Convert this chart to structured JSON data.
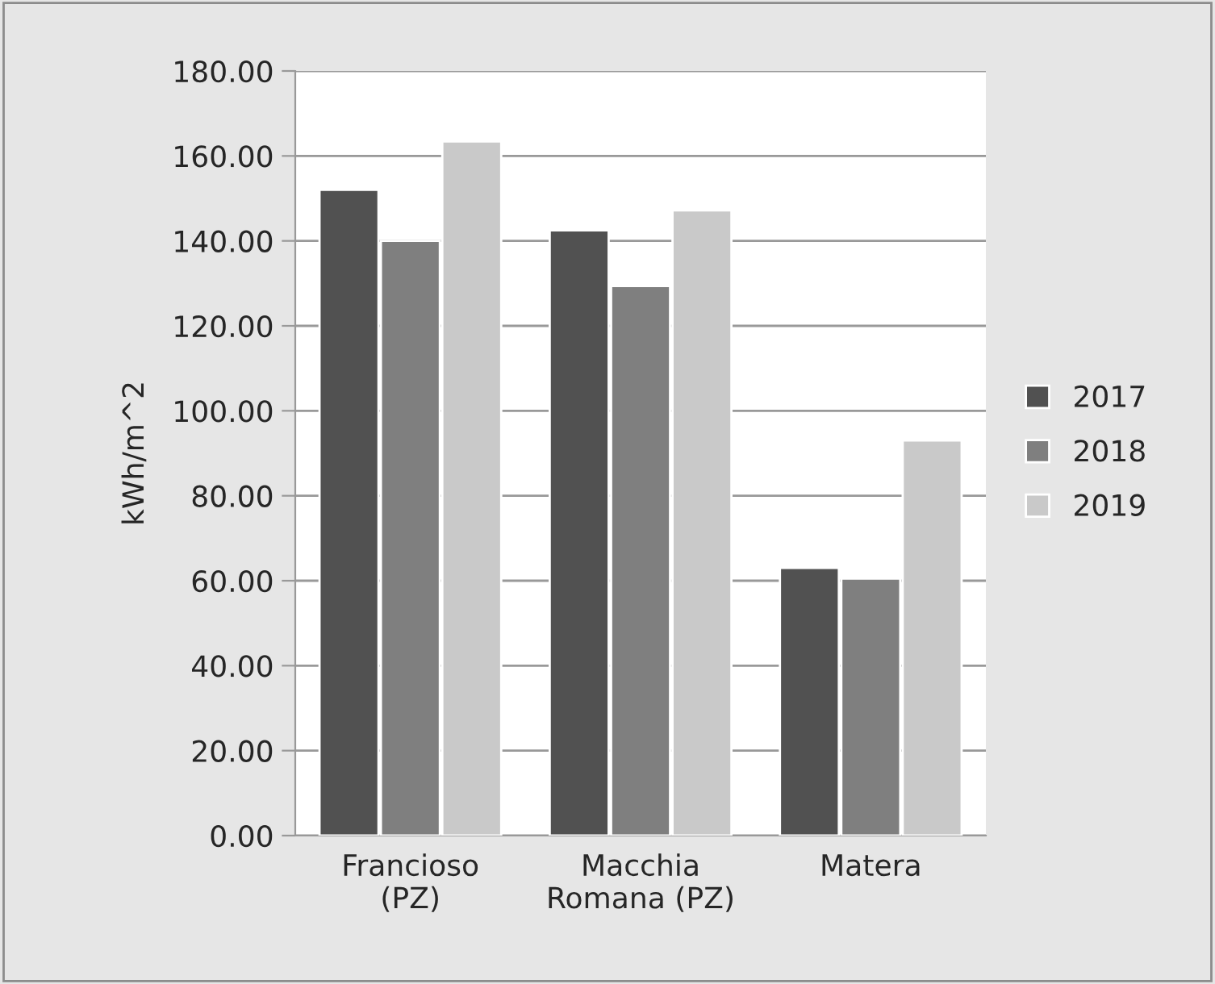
{
  "chart_data": {
    "type": "bar",
    "ylabel": "kWh/m^2",
    "categories": [
      "Francioso\n(PZ)",
      "Macchia\nRomana (PZ)",
      "Matera"
    ],
    "series": [
      {
        "name": "2017",
        "color": "#515151",
        "values": [
          152.0,
          142.5,
          63.0
        ]
      },
      {
        "name": "2018",
        "color": "#7f7f7f",
        "values": [
          140.0,
          129.4,
          60.5
        ]
      },
      {
        "name": "2019",
        "color": "#c9c9c9",
        "values": [
          163.4,
          147.2,
          93.0
        ]
      }
    ],
    "ylim": [
      0,
      180
    ],
    "yticks": [
      {
        "value": 0,
        "label": "0.00"
      },
      {
        "value": 20,
        "label": "20.00"
      },
      {
        "value": 40,
        "label": "40.00"
      },
      {
        "value": 60,
        "label": "60.00"
      },
      {
        "value": 80,
        "label": "80.00"
      },
      {
        "value": 100,
        "label": "100.00"
      },
      {
        "value": 120,
        "label": "120.00"
      },
      {
        "value": 140,
        "label": "140.00"
      },
      {
        "value": 160,
        "label": "160.00"
      },
      {
        "value": 180,
        "label": "180.00"
      }
    ],
    "grid": "y",
    "legend": "right"
  }
}
